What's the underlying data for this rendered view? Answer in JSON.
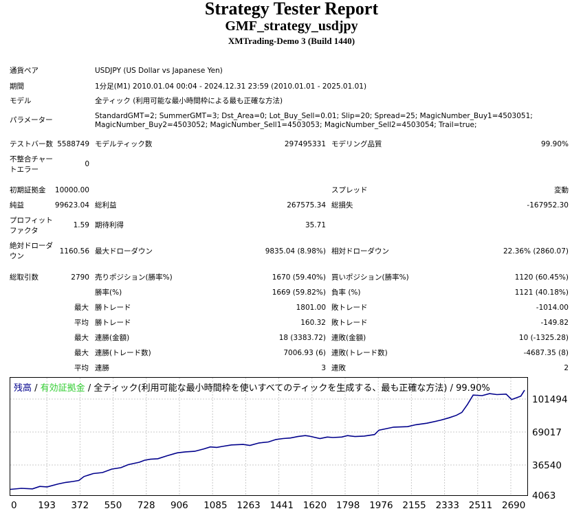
{
  "header": {
    "title": "Strategy Tester Report",
    "subtitle": "GMF_strategy_usdjpy",
    "build": "XMTrading-Demo 3 (Build 1440)"
  },
  "info": {
    "symbol_label": "通貨ペア",
    "symbol_value": "USDJPY (US Dollar vs Japanese Yen)",
    "period_label": "期間",
    "period_value": "1分足(M1) 2010.01.04 00:04 - 2024.12.31 23:59 (2010.01.01 - 2025.01.01)",
    "model_label": "モデル",
    "model_value": "全ティック (利用可能な最小時間枠による最も正確な方法)",
    "params_label": "パラメーター",
    "params_line1": "StandardGMT=2; SummerGMT=3; Dst_Area=0; Lot_Buy_Sell=0.01; Slip=20; Spread=25; MagicNumber_Buy1=4503051;",
    "params_line2": "MagicNumber_Buy2=4503052; MagicNumber_Sell1=4503053; MagicNumber_Sell2=4503054; Trail=true;"
  },
  "stats": {
    "bars_label": "テストバー数",
    "bars_value": "5588749",
    "ticks_label": "モデルティック数",
    "ticks_value": "297495331",
    "quality_label": "モデリング品質",
    "quality_value": "99.90%",
    "mismatch_label_1": "不整合チャー",
    "mismatch_label_2": "トエラー",
    "mismatch_value": "0",
    "deposit_label": "初期証拠金",
    "deposit_value": "10000.00",
    "spread_label": "スプレッド",
    "spread_value": "変動",
    "net_label": "純益",
    "net_value": "99623.04",
    "gross_profit_label": "総利益",
    "gross_profit_value": "267575.34",
    "gross_loss_label": "総損失",
    "gross_loss_value": "-167952.30",
    "pf_label_1": "プロフィット",
    "pf_label_2": "ファクタ",
    "pf_value": "1.59",
    "payoff_label": "期待利得",
    "payoff_value": "35.71",
    "abs_dd_label_1": "絶対ドローダ",
    "abs_dd_label_2": "ウン",
    "abs_dd_value": "1160.56",
    "max_dd_label": "最大ドローダウン",
    "max_dd_value": "9835.04 (8.98%)",
    "rel_dd_label": "相対ドローダウン",
    "rel_dd_value": "22.36% (2860.07)",
    "trades_label": "総取引数",
    "trades_value": "2790",
    "short_label": "売りポジション(勝率%)",
    "short_value": "1670 (59.40%)",
    "long_label": "買いポジション(勝率%)",
    "long_value": "1120 (60.45%)",
    "win_rate_label": "勝率(%)",
    "win_rate_value": "1669 (59.82%)",
    "loss_rate_label": "負率 (%)",
    "loss_rate_value": "1121 (40.18%)",
    "max_word": "最大",
    "avg_word": "平均",
    "largest_win_label": "勝トレード",
    "largest_win_value": "1801.00",
    "largest_loss_label": "敗トレード",
    "largest_loss_value": "-1014.00",
    "avg_win_label": "勝トレード",
    "avg_win_value": "160.32",
    "avg_loss_label": "敗トレード",
    "avg_loss_value": "-149.82",
    "consec_win_money_label": "連勝(金額)",
    "consec_win_money_value": "18 (3383.72)",
    "consec_loss_money_label": "連敗(金額)",
    "consec_loss_money_value": "10 (-1325.28)",
    "max_consec_profit_label": "連勝(トレード数)",
    "max_consec_profit_value": "7006.93 (6)",
    "max_consec_loss_label": "連敗(トレード数)",
    "max_consec_loss_value": "-4687.35 (8)",
    "avg_consec_win_label": "連勝",
    "avg_consec_win_value": "3",
    "avg_consec_loss_label": "連敗",
    "avg_consec_loss_value": "2"
  },
  "chart_data": {
    "type": "line",
    "legend": {
      "balance": "残高",
      "sep1": " / ",
      "equity": "有効証拠金",
      "rest": " / 全ティック(利用可能な最小時間枠を使いすべてのティックを生成する、最も正確な方法) / 99.90%"
    },
    "colors": {
      "balance": "#00008b",
      "equity": "#32cd32",
      "grid": "#c8c8c8"
    },
    "x_ticks": [
      "0",
      "193",
      "372",
      "550",
      "728",
      "906",
      "1085",
      "1263",
      "1441",
      "1620",
      "1798",
      "1976",
      "2155",
      "2333",
      "2511",
      "2690"
    ],
    "y_ticks": [
      "101494",
      "69017",
      "36540",
      "4063"
    ],
    "xlim": [
      0,
      2790
    ],
    "ylim": [
      4063,
      114000
    ],
    "series": [
      {
        "name": "残高",
        "x": [
          0,
          60,
          120,
          160,
          200,
          260,
          300,
          340,
          372,
          400,
          450,
          500,
          550,
          600,
          640,
          700,
          728,
          760,
          800,
          850,
          906,
          950,
          1000,
          1050,
          1085,
          1120,
          1150,
          1200,
          1263,
          1300,
          1350,
          1400,
          1441,
          1480,
          1520,
          1560,
          1600,
          1620,
          1680,
          1720,
          1750,
          1798,
          1830,
          1870,
          1920,
          1976,
          2000,
          2040,
          2080,
          2155,
          2200,
          2260,
          2333,
          2380,
          2420,
          2450,
          2480,
          2511,
          2560,
          2600,
          2640,
          2690,
          2720,
          2750,
          2770,
          2790
        ],
        "y": [
          10000,
          11000,
          10500,
          13000,
          12500,
          15500,
          17000,
          18000,
          19000,
          23000,
          26000,
          27000,
          30500,
          32000,
          35000,
          37500,
          39500,
          40500,
          41000,
          44000,
          47000,
          48000,
          48500,
          51000,
          53000,
          52500,
          53500,
          55000,
          55500,
          54500,
          57000,
          58000,
          60500,
          61500,
          62000,
          63500,
          64500,
          64000,
          61500,
          63000,
          62500,
          63000,
          64500,
          63500,
          64000,
          65500,
          70000,
          71500,
          73000,
          73500,
          75500,
          77000,
          80000,
          82500,
          85000,
          88000,
          96000,
          105500,
          105000,
          107000,
          106000,
          106500,
          101000,
          103000,
          104500,
          110500
        ]
      }
    ]
  }
}
